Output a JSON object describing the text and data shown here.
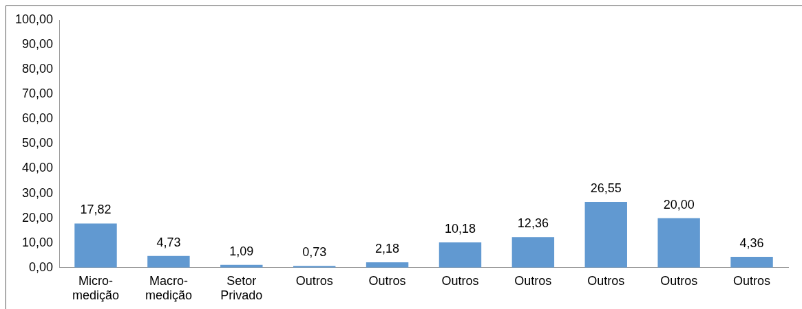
{
  "chart_data": {
    "type": "bar",
    "categories": [
      "Micro-medição",
      "Macro-medição",
      "Setor Privado",
      "Outros",
      "Outros",
      "Outros",
      "Outros",
      "Outros",
      "Outros",
      "Outros"
    ],
    "values": [
      17.82,
      4.73,
      1.09,
      0.73,
      2.18,
      10.18,
      12.36,
      26.55,
      20.0,
      4.36
    ],
    "value_labels": [
      "17,82",
      "4,73",
      "1,09",
      "0,73",
      "2,18",
      "10,18",
      "12,36",
      "26,55",
      "20,00",
      "4,36"
    ],
    "color": "#6199d1",
    "ylim": [
      0,
      100
    ],
    "yticks": [
      {
        "value": 0,
        "label": "0,00"
      },
      {
        "value": 10,
        "label": "10,00"
      },
      {
        "value": 20,
        "label": "20,00"
      },
      {
        "value": 30,
        "label": "30,00"
      },
      {
        "value": 40,
        "label": "40,00"
      },
      {
        "value": 50,
        "label": "50,00"
      },
      {
        "value": 60,
        "label": "60,00"
      },
      {
        "value": 70,
        "label": "70,00"
      },
      {
        "value": 80,
        "label": "80,00"
      },
      {
        "value": 90,
        "label": "90,00"
      },
      {
        "value": 100,
        "label": "100,00"
      }
    ],
    "grid": false,
    "legend": false
  }
}
